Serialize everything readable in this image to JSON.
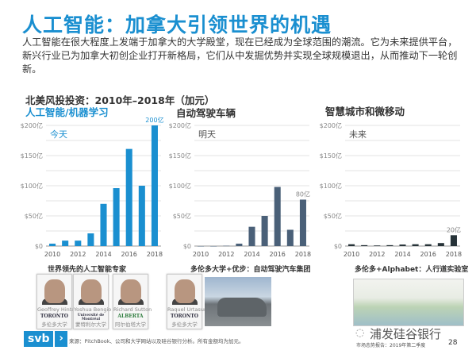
{
  "title": "人工智能：加拿大引领世界的机遇",
  "intro": "人工智能在很大程度上发端于加拿大的大学殿堂，现在已经成为全球范围的潮流。它为未来提供平台，新兴行业已为加拿大初创企业打开新格局，它们从中发掘优势并实现全球规模退出，从而推动下一轮创新。",
  "section_title": "北美风投投资：2010年–2018年（加元）",
  "chart_data": [
    {
      "type": "bar",
      "title": "人工智能/机器学习",
      "annotation": "今天",
      "color": "#1a8fd0",
      "categories": [
        "2010",
        "2011",
        "2012",
        "2013",
        "2014",
        "2015",
        "2016",
        "2017",
        "2018"
      ],
      "values": [
        4,
        9,
        9,
        21,
        70,
        96,
        161,
        100,
        200
      ],
      "value_label": "200亿",
      "xticks": [
        "2010",
        "2012",
        "2014",
        "2016",
        "2018"
      ],
      "yticks": [
        "$0",
        "$50亿",
        "$100亿",
        "$150亿",
        "$200亿"
      ],
      "ylim": [
        0,
        200
      ],
      "unit": "亿加元",
      "grid": true
    },
    {
      "type": "bar",
      "title": "自动驾驶车辆",
      "annotation": "明天",
      "color": "#4a6078",
      "categories": [
        "2010",
        "2011",
        "2012",
        "2013",
        "2014",
        "2015",
        "2016",
        "2017",
        "2018"
      ],
      "values": [
        0,
        0,
        0.5,
        4,
        32,
        50,
        98,
        27,
        77
      ],
      "value_label": "80亿",
      "xticks": [
        "2010",
        "2012",
        "2014",
        "2016",
        "2018"
      ],
      "yticks": [
        "$0",
        "$50亿",
        "$100亿",
        "$150亿",
        "$200亿"
      ],
      "ylim": [
        0,
        200
      ],
      "unit": "亿加元",
      "grid": true
    },
    {
      "type": "bar",
      "title": "智慧城市和微移动",
      "annotation": "未来",
      "color": "#263238",
      "categories": [
        "2010",
        "2011",
        "2012",
        "2013",
        "2014",
        "2015",
        "2016",
        "2017",
        "2018"
      ],
      "values": [
        3,
        1.5,
        1,
        1.5,
        2.5,
        3,
        3,
        5,
        18
      ],
      "value_label": "20亿",
      "xticks": [
        "2010",
        "2012",
        "2014",
        "2016",
        "2018"
      ],
      "yticks": [
        "$0",
        "$50亿",
        "$100亿",
        "$150亿",
        "$200亿"
      ],
      "ylim": [
        0,
        200
      ],
      "unit": "亿加元",
      "grid": true
    }
  ],
  "captions": [
    "世界领先的人工智能专家",
    "多伦多大学+优步：自动驾驶汽车集团",
    "多伦多+Alphabet：人行道实验室"
  ],
  "people": [
    {
      "name": "Geoffrey Hinton",
      "uni_logo": "TORONTO",
      "uni": "多伦多大学"
    },
    {
      "name": "Yoshua Bengio",
      "uni_logo": "Université de Montréal",
      "uni": "蒙特利尔大学"
    },
    {
      "name": "Richard Sutton",
      "uni_logo": "ALBERTA",
      "uni": "阿尔伯塔大学"
    },
    {
      "name": "Raquel Urtasun",
      "uni_logo": "TORONTO",
      "uni": "多伦多大学"
    }
  ],
  "footer": {
    "logo": "svb",
    "logo_arrow": "›",
    "source": "来源：PitchBook、公司和大学网站以及硅谷银行分析。所有金额均为加元。",
    "watermark": "浦发硅谷银行",
    "report": "市场态势报告：2019年第二季度",
    "page": "28"
  },
  "colors": {
    "accent": "#1a8fd0"
  }
}
